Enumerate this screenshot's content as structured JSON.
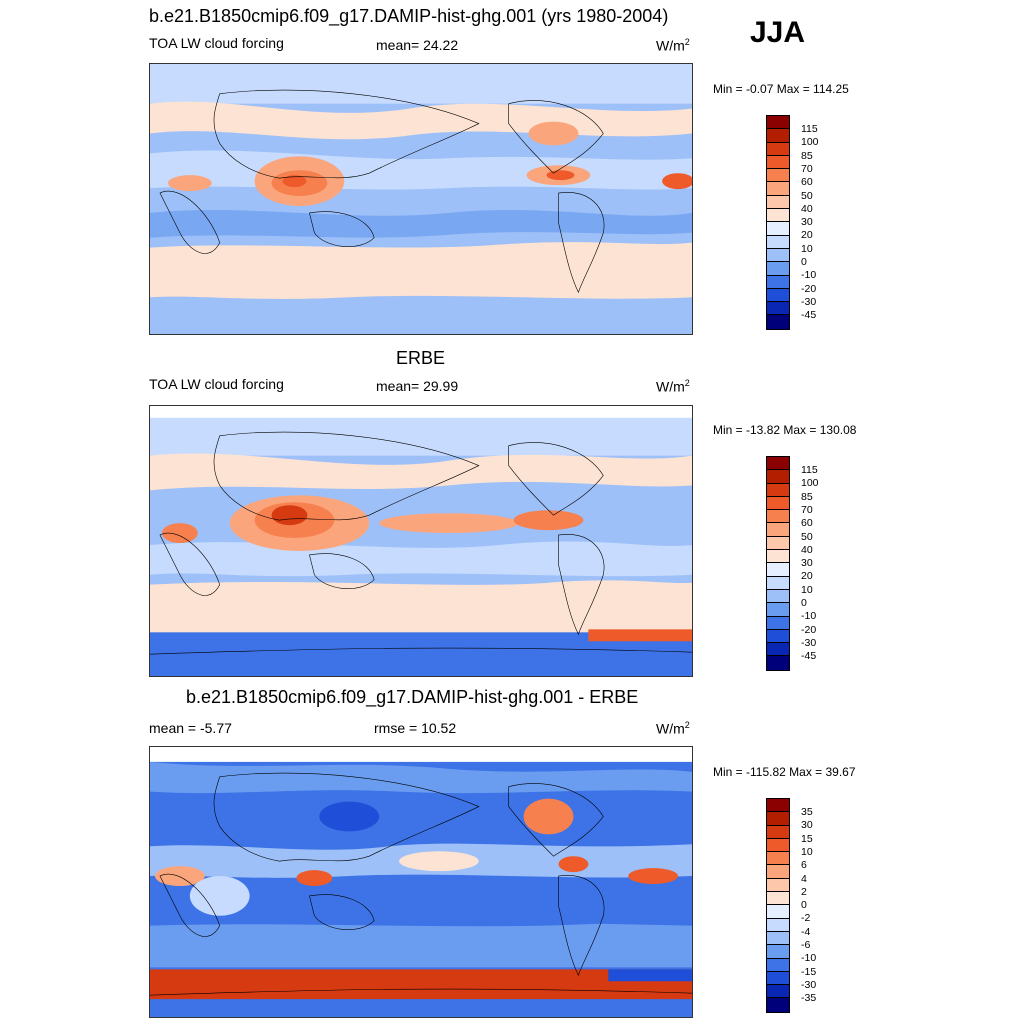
{
  "season": "JJA",
  "panels": [
    {
      "title": "b.e21.B1850cmip6.f09_g17.DAMIP-hist-ghg.001 (yrs 1980-2004)",
      "left_label": "TOA LW cloud forcing",
      "center_label": "mean=  24.22",
      "units": "W/m",
      "units_sup": "2",
      "minmax": "Min =  -0.07 Max = 114.25",
      "colorbar_labels": [
        "115",
        "100",
        "85",
        "70",
        "60",
        "50",
        "40",
        "30",
        "20",
        "10",
        "0",
        "-10",
        "-20",
        "-30",
        "-45"
      ],
      "colorbar_colors": [
        "#8b0000",
        "#b31e00",
        "#d63a10",
        "#ee5a2a",
        "#f7804f",
        "#faa57c",
        "#fcc7aa",
        "#fde3d3",
        "#e6efff",
        "#c6dbfd",
        "#9ec0f8",
        "#6a9cf0",
        "#3d73e6",
        "#1f4ed8",
        "#0a27b3",
        "#00007a"
      ]
    },
    {
      "title": "ERBE",
      "left_label": "TOA LW cloud forcing",
      "center_label": "mean=  29.99",
      "units": "W/m",
      "units_sup": "2",
      "minmax": "Min = -13.82 Max = 130.08",
      "colorbar_labels": [
        "115",
        "100",
        "85",
        "70",
        "60",
        "50",
        "40",
        "30",
        "20",
        "10",
        "0",
        "-10",
        "-20",
        "-30",
        "-45"
      ],
      "colorbar_colors": [
        "#8b0000",
        "#b31e00",
        "#d63a10",
        "#ee5a2a",
        "#f7804f",
        "#faa57c",
        "#fcc7aa",
        "#fde3d3",
        "#e6efff",
        "#c6dbfd",
        "#9ec0f8",
        "#6a9cf0",
        "#3d73e6",
        "#1f4ed8",
        "#0a27b3",
        "#00007a"
      ]
    },
    {
      "title": "b.e21.B1850cmip6.f09_g17.DAMIP-hist-ghg.001 - ERBE",
      "left_label": "mean =  -5.77",
      "center_label": "rmse =  10.52",
      "units": "W/m",
      "units_sup": "2",
      "minmax": "Min = -115.82 Max =  39.67",
      "colorbar_labels": [
        "35",
        "30",
        "15",
        "10",
        "6",
        "4",
        "2",
        "0",
        "-2",
        "-4",
        "-6",
        "-10",
        "-15",
        "-30",
        "-35"
      ],
      "colorbar_colors": [
        "#8b0000",
        "#b31e00",
        "#d63a10",
        "#ee5a2a",
        "#f7804f",
        "#faa57c",
        "#fcc7aa",
        "#fde3d3",
        "#e6efff",
        "#c6dbfd",
        "#9ec0f8",
        "#6a9cf0",
        "#3d73e6",
        "#1f4ed8",
        "#0a27b3",
        "#00007a"
      ]
    }
  ]
}
